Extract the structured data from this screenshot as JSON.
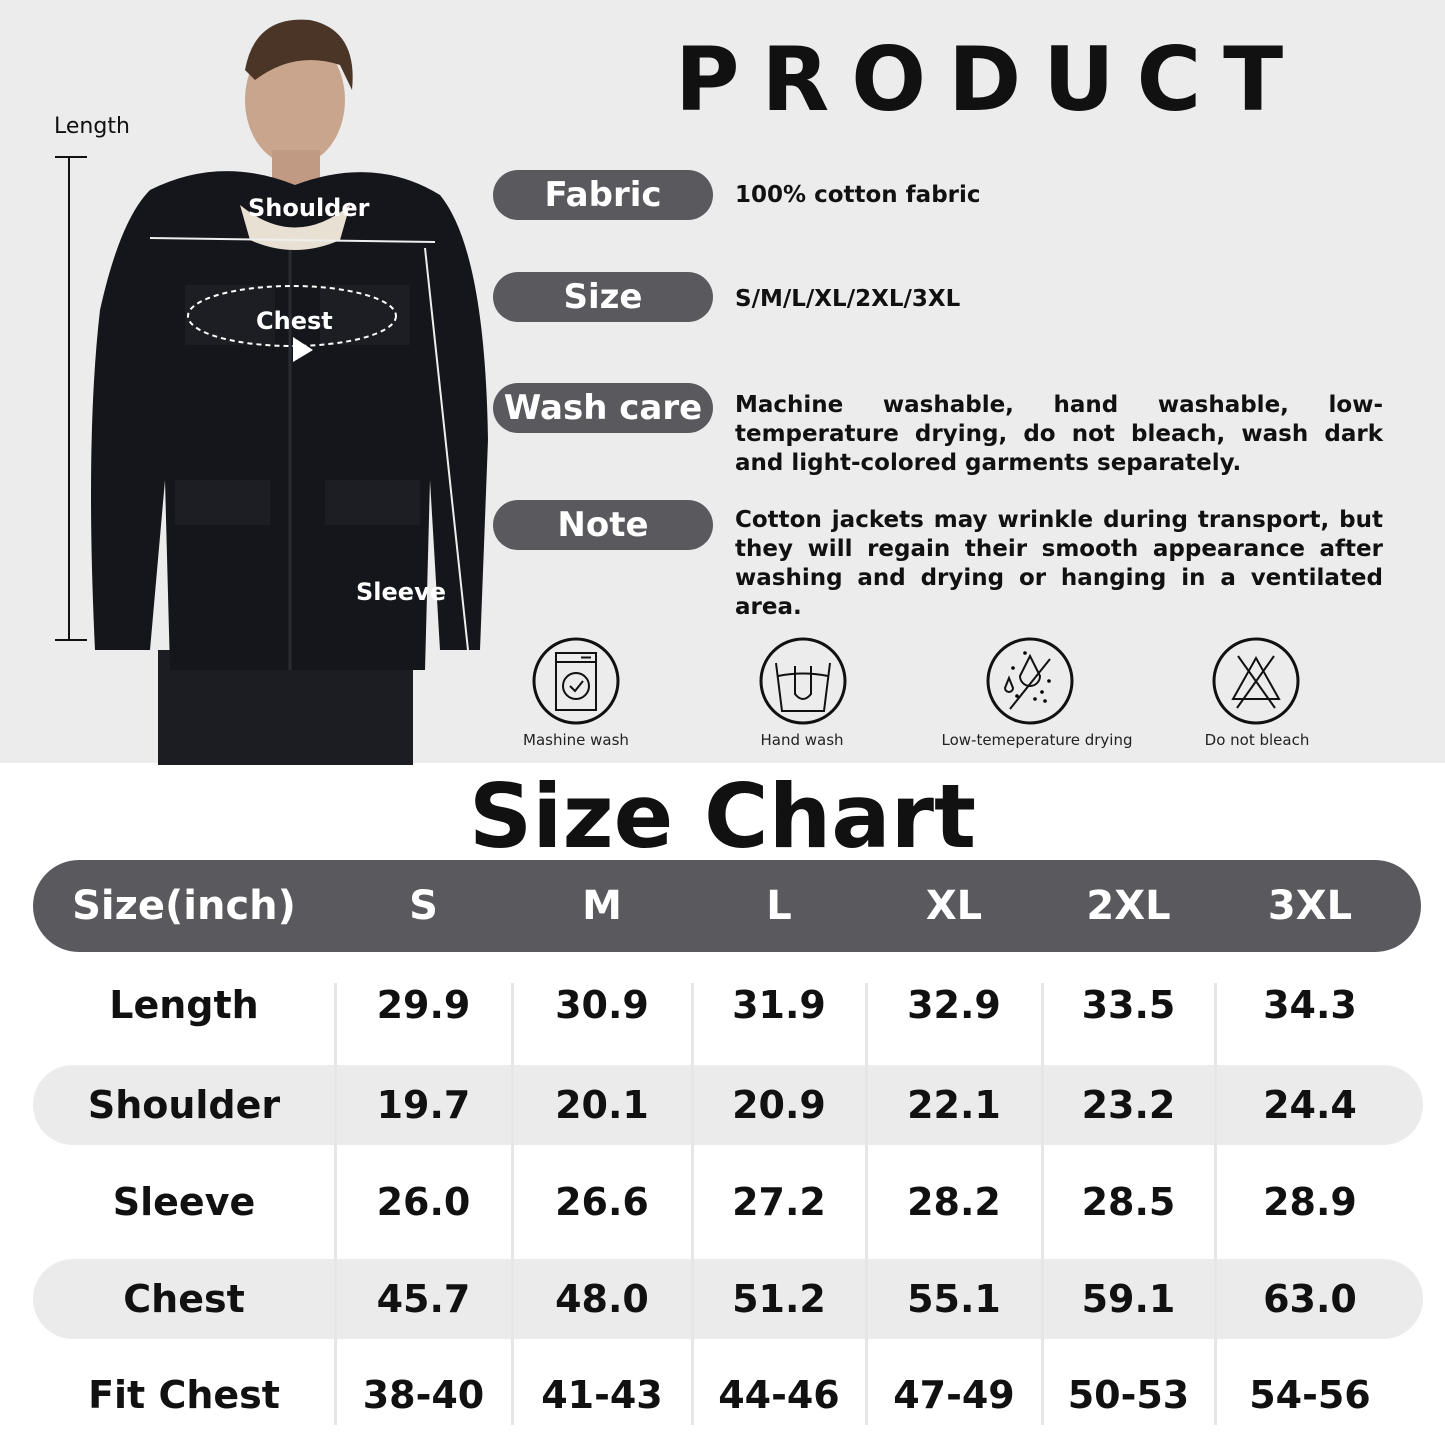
{
  "product_title": "PRODUCT",
  "photo": {
    "length_label": "Length",
    "shoulder_label": "Shoulder",
    "chest_label": "Chest",
    "sleeve_label": "Sleeve"
  },
  "specs": [
    {
      "label": "Fabric",
      "value": "100% cotton fabric"
    },
    {
      "label": "Size",
      "value": "S/M/L/XL/2XL/3XL"
    },
    {
      "label": "Wash care",
      "value": "Machine washable, hand washable, low-temperature drying, do not bleach, wash dark and light-colored garments separately."
    },
    {
      "label": "Note",
      "value": "Cotton jackets may wrinkle during transport, but they will regain their smooth appearance after washing and drying or hanging in a ventilated area."
    }
  ],
  "care_icons": [
    {
      "icon": "washing-machine-icon",
      "label": "Mashine wash"
    },
    {
      "icon": "hand-wash-icon",
      "label": "Hand wash"
    },
    {
      "icon": "low-temperature-drying-icon",
      "label": "Low-temeperature drying"
    },
    {
      "icon": "do-not-bleach-icon",
      "label": "Do not bleach"
    }
  ],
  "size_chart": {
    "title": "Size Chart",
    "headers": [
      "Size(inch)",
      "S",
      "M",
      "L",
      "XL",
      "2XL",
      "3XL"
    ],
    "rows": [
      {
        "label": "Length",
        "values": [
          "29.9",
          "30.9",
          "31.9",
          "32.9",
          "33.5",
          "34.3"
        ]
      },
      {
        "label": "Shoulder",
        "values": [
          "19.7",
          "20.1",
          "20.9",
          "22.1",
          "23.2",
          "24.4"
        ]
      },
      {
        "label": "Sleeve",
        "values": [
          "26.0",
          "26.6",
          "27.2",
          "28.2",
          "28.5",
          "28.9"
        ]
      },
      {
        "label": "Chest",
        "values": [
          "45.7",
          "48.0",
          "51.2",
          "55.1",
          "59.1",
          "63.0"
        ]
      },
      {
        "label": "Fit Chest",
        "values": [
          "38-40",
          "41-43",
          "44-46",
          "47-49",
          "50-53",
          "54-56"
        ]
      }
    ]
  },
  "colors": {
    "pill": "#5a595e",
    "top_bg": "#ececec",
    "band": "#ebebeb"
  }
}
